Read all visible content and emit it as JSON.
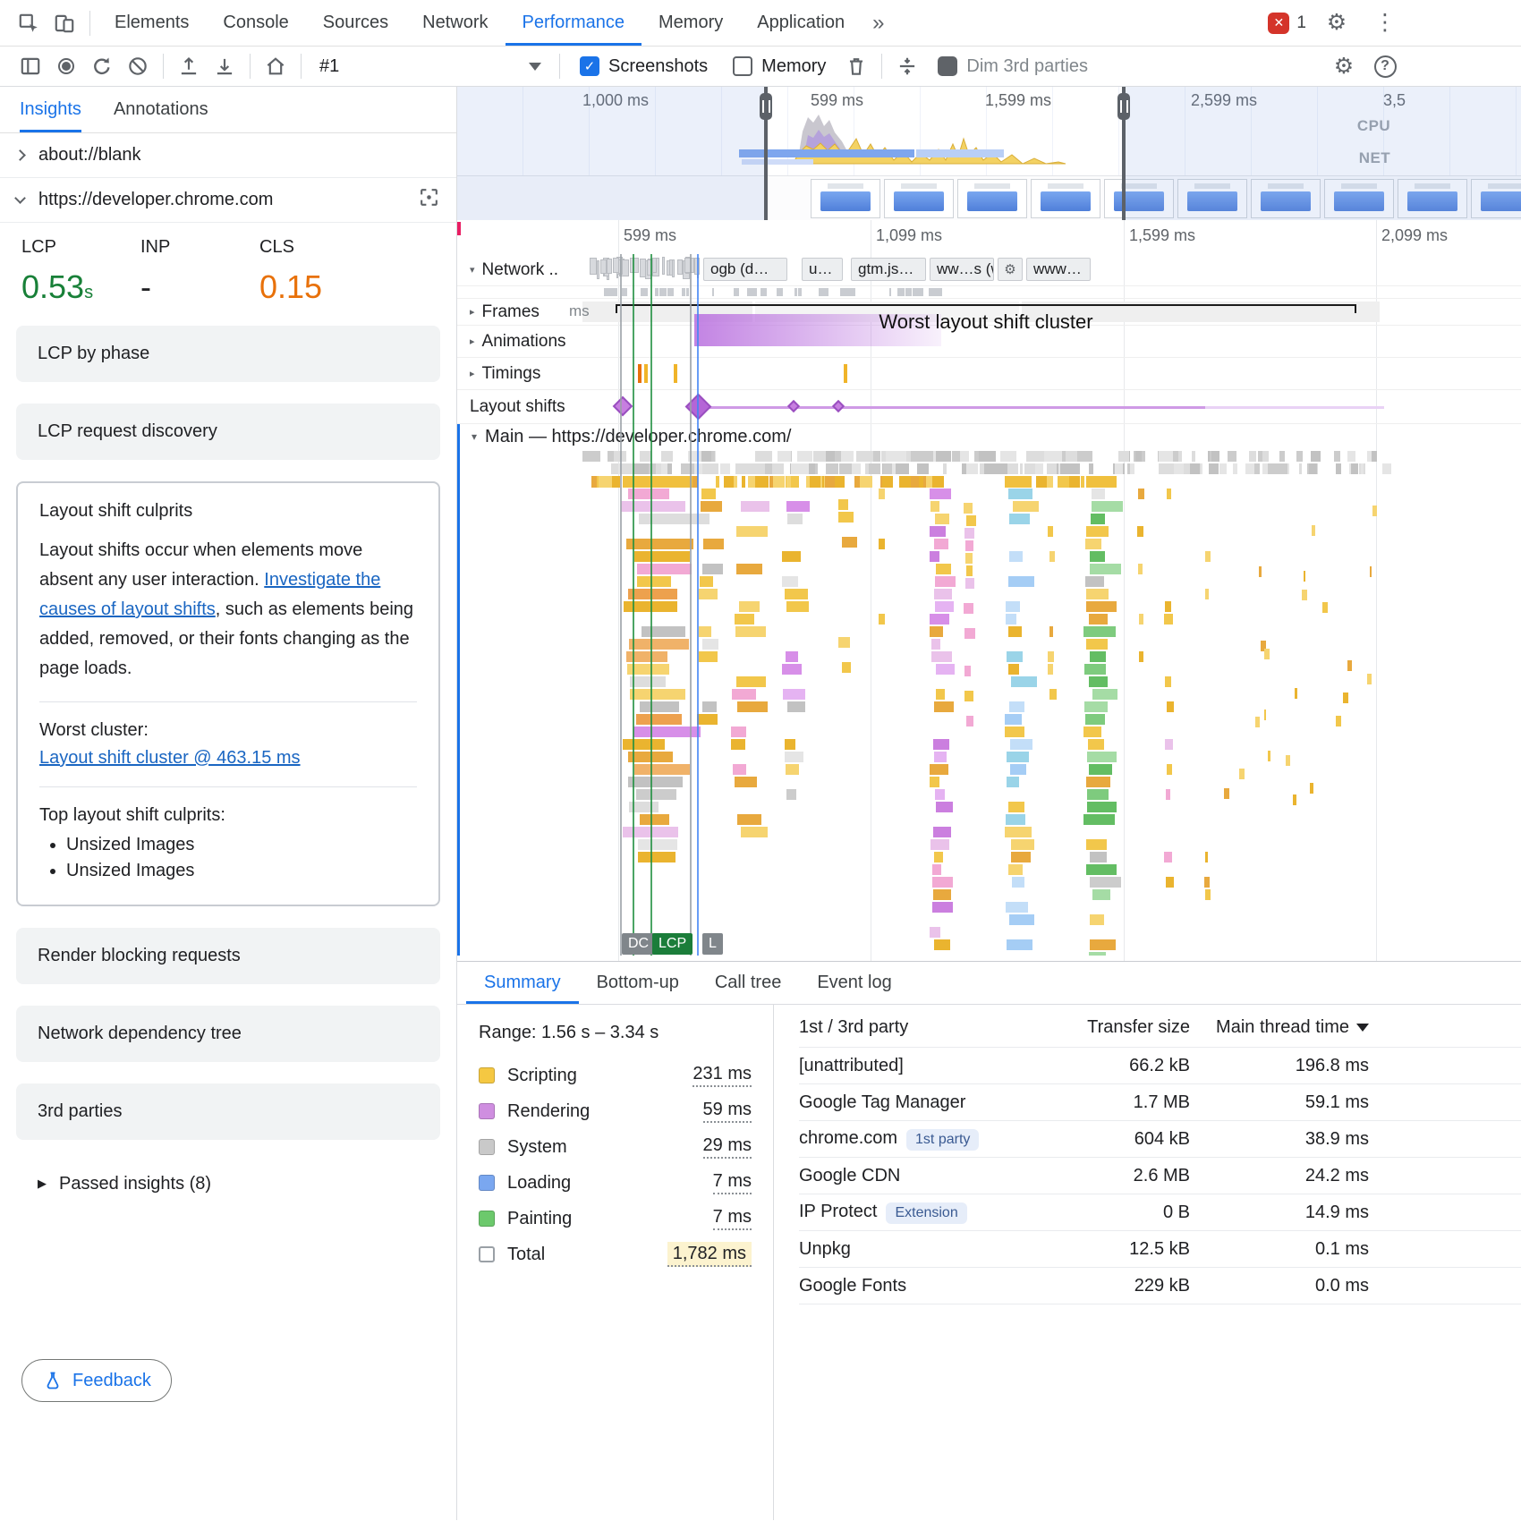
{
  "colors": {
    "accent": "#1a73e8",
    "lcp_green": "#188038",
    "cls_orange": "#e8710a",
    "scripting": "#f5c842",
    "rendering": "#cf8ee0",
    "system": "#c9c9c9",
    "loading": "#7aa7f0",
    "painting": "#6cc96c"
  },
  "nav": {
    "tabs": [
      "Elements",
      "Console",
      "Sources",
      "Network",
      "Performance",
      "Memory",
      "Application"
    ],
    "more": "»",
    "error_count": "1"
  },
  "toolbar": {
    "session": "#1",
    "screenshots": "Screenshots",
    "memory": "Memory",
    "dim": "Dim 3rd parties"
  },
  "sidebar": {
    "tabs": [
      "Insights",
      "Annotations"
    ],
    "pages": [
      "about://blank",
      "https://developer.chrome.com"
    ],
    "metrics": [
      {
        "name": "LCP",
        "value": "0.53",
        "unit": "s"
      },
      {
        "name": "INP",
        "value": "-",
        "unit": ""
      },
      {
        "name": "CLS",
        "value": "0.15",
        "unit": ""
      }
    ],
    "cards": [
      "LCP by phase",
      "LCP request discovery",
      "Render blocking requests",
      "Network dependency tree",
      "3rd parties"
    ],
    "culprits_card": {
      "title": "Layout shift culprits",
      "p1": "Layout shifts occur when elements move absent any user interaction. ",
      "link": "Investigate the causes of layout shifts",
      "p2": ", such as elements being added, removed, or their fonts changing as the page loads.",
      "worst_label": "Worst cluster:",
      "worst_link": "Layout shift cluster @ 463.15 ms",
      "top_label": "Top layout shift culprits:",
      "culprits": [
        "Unsized Images",
        "Unsized Images"
      ]
    },
    "passed": "Passed insights (8)",
    "feedback": "Feedback"
  },
  "overview": {
    "ticks": [
      "1,000 ms",
      "599 ms",
      "1,599 ms",
      "2,599 ms",
      "3,5"
    ],
    "cpu": "CPU",
    "net": "NET"
  },
  "timeline": {
    "ticks": [
      "599 ms",
      "1,099 ms",
      "1,599 ms",
      "2,099 ms"
    ],
    "network_label": "Network ..",
    "frames_label": "Frames",
    "frames_value": "ms",
    "animations_label": "Animations",
    "timings_label": "Timings",
    "shifts_label": "Layout shifts",
    "chips": [
      "ogb (d…",
      "u…",
      "gtm.js…",
      "ww…s (w…",
      "www…"
    ],
    "cluster": "Worst layout shift cluster",
    "main_label": "Main — https://developer.chrome.com/",
    "markers": [
      "DC",
      "LCP",
      "L"
    ]
  },
  "bottom": {
    "tabs": [
      "Summary",
      "Bottom-up",
      "Call tree",
      "Event log"
    ],
    "range": "Range: 1.56 s – 3.34 s",
    "legend": [
      {
        "label": "Scripting",
        "value": "231 ms"
      },
      {
        "label": "Rendering",
        "value": "59 ms"
      },
      {
        "label": "System",
        "value": "29 ms"
      },
      {
        "label": "Loading",
        "value": "7 ms"
      },
      {
        "label": "Painting",
        "value": "7 ms"
      },
      {
        "label": "Total",
        "value": "1,782 ms"
      }
    ],
    "table": {
      "headers": [
        "1st / 3rd party",
        "Transfer size",
        "Main thread time"
      ],
      "rows": [
        {
          "name": "[unattributed]",
          "badge": "",
          "size": "66.2 kB",
          "time": "196.8 ms"
        },
        {
          "name": "Google Tag Manager",
          "badge": "",
          "size": "1.7 MB",
          "time": "59.1 ms"
        },
        {
          "name": "chrome.com",
          "badge": "1st party",
          "size": "604 kB",
          "time": "38.9 ms"
        },
        {
          "name": "Google CDN",
          "badge": "",
          "size": "2.6 MB",
          "time": "24.2 ms"
        },
        {
          "name": "IP Protect",
          "badge": "Extension",
          "size": "0 B",
          "time": "14.9 ms"
        },
        {
          "name": "Unpkg",
          "badge": "",
          "size": "12.5 kB",
          "time": "0.1 ms"
        },
        {
          "name": "Google Fonts",
          "badge": "",
          "size": "229 kB",
          "time": "0.0 ms"
        }
      ]
    }
  }
}
